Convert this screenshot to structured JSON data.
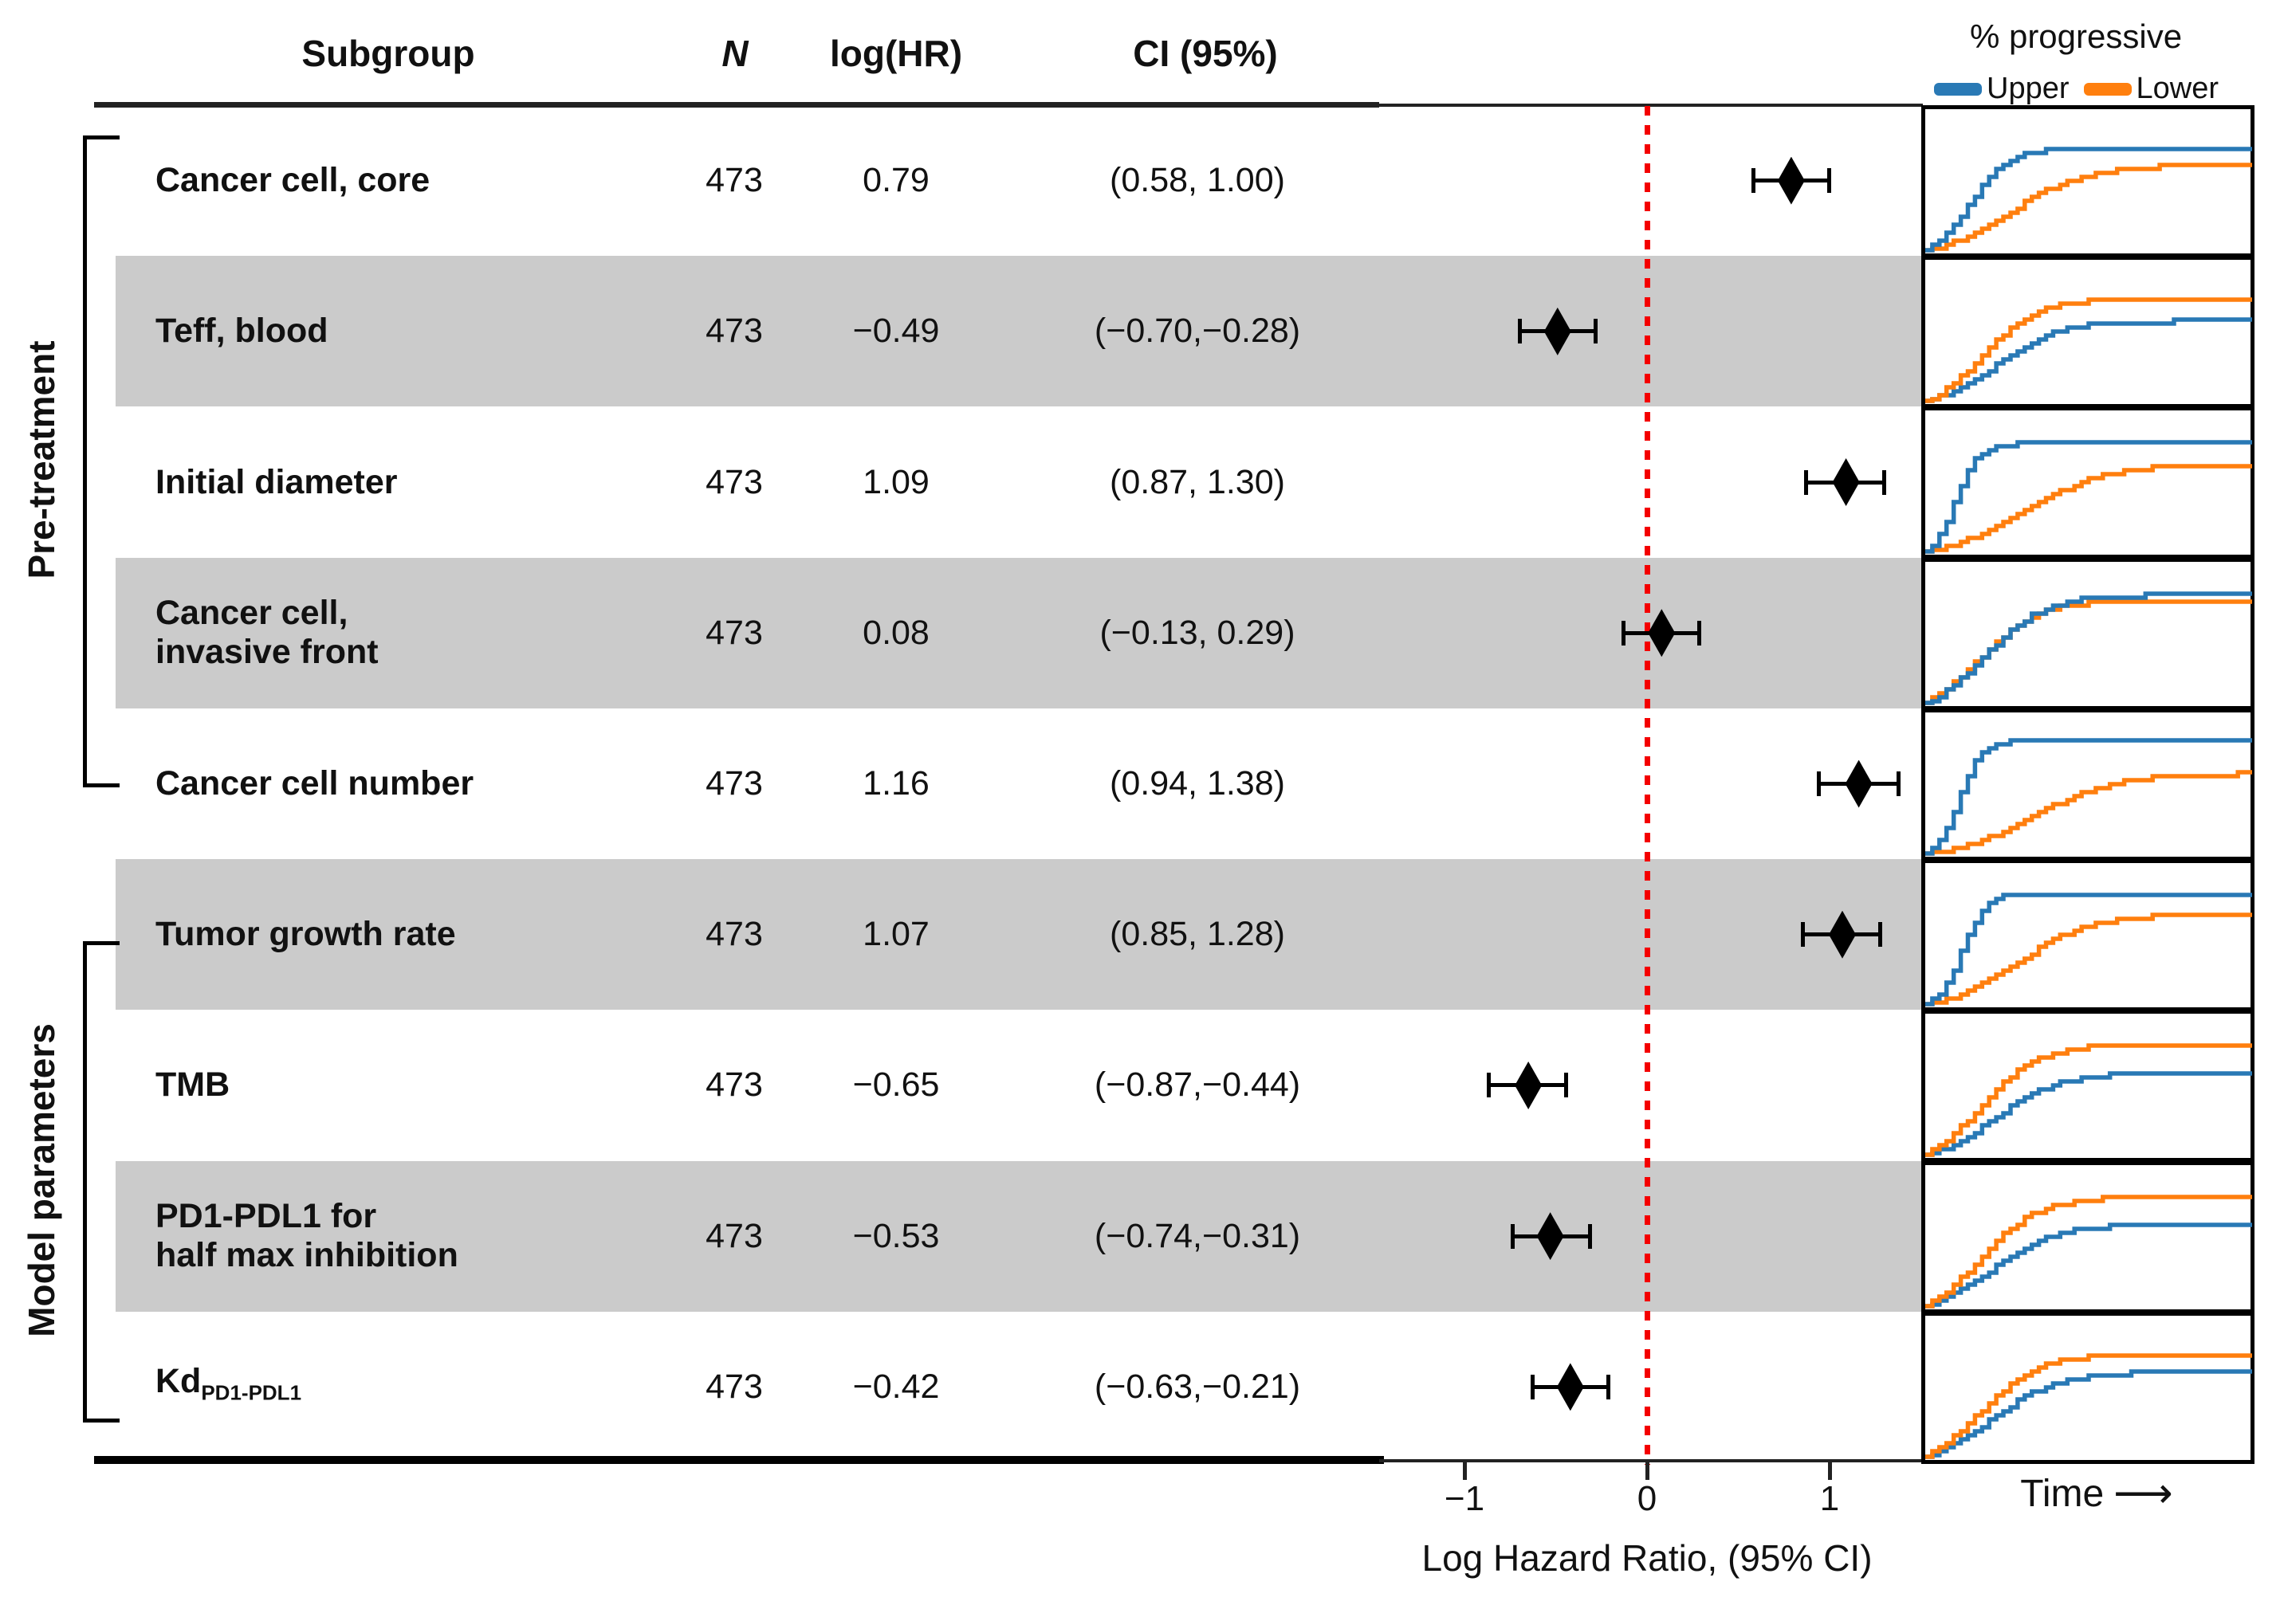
{
  "figure": {
    "columns": {
      "subgroup": "Subgroup",
      "n": "N",
      "loghr": "log(HR)",
      "ci": "CI (95%)"
    },
    "legend": {
      "title": "% progressive",
      "upper": "Upper",
      "lower": "Lower"
    },
    "time_axis": {
      "label": "Time",
      "arrow": "⟶"
    },
    "groups": [
      {
        "label": "Pre-treatment",
        "first_row": 1,
        "last_row": 5
      },
      {
        "label": "Model parameters",
        "first_row": 6,
        "last_row": 9
      }
    ],
    "colors": {
      "upper": "#2979b5",
      "lower": "#ff7f0e",
      "reference_line": "#f40000",
      "shaded_band": "#cbcbcb",
      "marker": "#000000"
    }
  },
  "chart_data": {
    "type": "forest",
    "title": "",
    "xlabel": "Log Hazard Ratio, (95% CI)",
    "xticks": [
      "−1",
      "0",
      "1"
    ],
    "xtick_values": [
      -1,
      0,
      1
    ],
    "xlim": [
      -1.49,
      1.51
    ],
    "reference_line": 0,
    "grid": false,
    "legend_position": "top-right",
    "mini_charts": {
      "title": "% progressive",
      "xlabel": "Time",
      "series": [
        "Upper",
        "Lower"
      ],
      "description": "Cumulative % progressive over time; step curves for Upper (blue) vs Lower (orange) subgroup of each covariate. plateau = final fraction of panel height, t50 = fractional time of half-rise."
    },
    "rows": [
      {
        "subgroup": "Cancer cell, core",
        "label_lines": [
          "Cancer cell, core"
        ],
        "n": 473,
        "loghr_text": "0.79",
        "ci_text": "(0.58, 1.00)",
        "est": 0.79,
        "lo": 0.58,
        "hi": 1.0,
        "shaded": false,
        "group": "Pre-treatment",
        "progressive": {
          "upper": {
            "t50": 0.13,
            "steep": 16,
            "plateau": 0.8
          },
          "lower": {
            "t50": 0.26,
            "steep": 9,
            "plateau": 0.66
          }
        }
      },
      {
        "subgroup": "Teff, blood",
        "label_lines": [
          "Teff, blood"
        ],
        "n": 473,
        "loghr_text": "−0.49",
        "ci_text": "(−0.70,−0.28)",
        "est": -0.49,
        "lo": -0.7,
        "hi": -0.28,
        "shaded": true,
        "group": "Pre-treatment",
        "progressive": {
          "upper": {
            "t50": 0.22,
            "steep": 11,
            "plateau": 0.62
          },
          "lower": {
            "t50": 0.17,
            "steep": 12,
            "plateau": 0.79
          }
        }
      },
      {
        "subgroup": "Initial diameter",
        "label_lines": [
          "Initial diameter"
        ],
        "n": 473,
        "loghr_text": "1.09",
        "ci_text": "(0.87, 1.30)",
        "est": 1.09,
        "lo": 0.87,
        "hi": 1.3,
        "shaded": false,
        "group": "Pre-treatment",
        "progressive": {
          "upper": {
            "t50": 0.09,
            "steep": 30,
            "plateau": 0.84
          },
          "lower": {
            "t50": 0.3,
            "steep": 8,
            "plateau": 0.68
          }
        }
      },
      {
        "subgroup": "Cancer cell, invasive front",
        "label_lines": [
          "Cancer cell,",
          "invasive front"
        ],
        "n": 473,
        "loghr_text": "0.08",
        "ci_text": "(−0.13, 0.29)",
        "est": 0.08,
        "lo": -0.13,
        "hi": 0.29,
        "shaded": true,
        "group": "Pre-treatment",
        "progressive": {
          "upper": {
            "t50": 0.18,
            "steep": 11,
            "plateau": 0.84
          },
          "lower": {
            "t50": 0.16,
            "steep": 11,
            "plateau": 0.8
          }
        }
      },
      {
        "subgroup": "Cancer cell number",
        "label_lines": [
          "Cancer cell number"
        ],
        "n": 473,
        "loghr_text": "1.16",
        "ci_text": "(0.94, 1.38)",
        "est": 1.16,
        "lo": 0.94,
        "hi": 1.38,
        "shaded": false,
        "group": "Pre-treatment",
        "progressive": {
          "upper": {
            "t50": 0.1,
            "steep": 30,
            "plateau": 0.88
          },
          "lower": {
            "t50": 0.33,
            "steep": 8,
            "plateau": 0.62
          }
        }
      },
      {
        "subgroup": "Tumor growth rate",
        "label_lines": [
          "Tumor growth rate"
        ],
        "n": 473,
        "loghr_text": "1.07",
        "ci_text": "(0.85, 1.28)",
        "est": 1.07,
        "lo": 0.85,
        "hi": 1.28,
        "shaded": true,
        "group": "Model parameters",
        "progressive": {
          "upper": {
            "t50": 0.11,
            "steep": 28,
            "plateau": 0.86
          },
          "lower": {
            "t50": 0.28,
            "steep": 9,
            "plateau": 0.7
          }
        }
      },
      {
        "subgroup": "TMB",
        "label_lines": [
          "TMB"
        ],
        "n": 473,
        "loghr_text": "−0.65",
        "ci_text": "(−0.87,−0.44)",
        "est": -0.65,
        "lo": -0.87,
        "hi": -0.44,
        "shaded": false,
        "group": "Model parameters",
        "progressive": {
          "upper": {
            "t50": 0.21,
            "steep": 10,
            "plateau": 0.64
          },
          "lower": {
            "t50": 0.16,
            "steep": 11,
            "plateau": 0.86
          }
        }
      },
      {
        "subgroup": "PD1-PDL1 for half max inhibition",
        "label_lines": [
          "PD1-PDL1 for",
          "half max inhibition"
        ],
        "n": 473,
        "loghr_text": "−0.53",
        "ci_text": "(−0.74,−0.31)",
        "est": -0.53,
        "lo": -0.74,
        "hi": -0.31,
        "shaded": true,
        "group": "Model parameters",
        "progressive": {
          "upper": {
            "t50": 0.2,
            "steep": 10,
            "plateau": 0.64
          },
          "lower": {
            "t50": 0.16,
            "steep": 11,
            "plateau": 0.85
          }
        }
      },
      {
        "subgroup": "Kd PD1-PDL1",
        "label_lines": [
          "Kd"
        ],
        "label_subscript": "PD1-PDL1",
        "n": 473,
        "loghr_text": "−0.42",
        "ci_text": "(−0.63,−0.21)",
        "est": -0.42,
        "lo": -0.63,
        "hi": -0.21,
        "shaded": false,
        "group": "Model parameters",
        "progressive": {
          "upper": {
            "t50": 0.2,
            "steep": 10,
            "plateau": 0.66
          },
          "lower": {
            "t50": 0.16,
            "steep": 11,
            "plateau": 0.8
          }
        }
      }
    ]
  }
}
